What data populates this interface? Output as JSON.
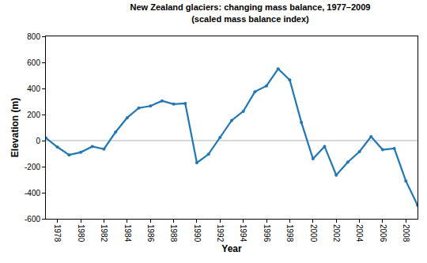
{
  "chart_data": {
    "type": "line",
    "title": "New Zealand glaciers: changing mass balance, 1977–2009",
    "subtitle": "(scaled mass balance index)",
    "x_label": "Year",
    "y_label": "Elevation (m)",
    "x": [
      1977,
      1978,
      1979,
      1980,
      1981,
      1982,
      1983,
      1984,
      1985,
      1986,
      1987,
      1988,
      1989,
      1990,
      1991,
      1992,
      1993,
      1994,
      1995,
      1996,
      1997,
      1998,
      1999,
      2000,
      2001,
      2002,
      2003,
      2004,
      2005,
      2006,
      2007,
      2008,
      2009
    ],
    "values": [
      20,
      -50,
      -110,
      -90,
      -45,
      -65,
      65,
      175,
      250,
      265,
      305,
      280,
      285,
      -170,
      -105,
      25,
      155,
      225,
      375,
      420,
      550,
      465,
      140,
      -140,
      -45,
      -265,
      -165,
      -85,
      30,
      -70,
      -60,
      -310,
      -495
    ],
    "color": "#2077b4",
    "marker": "circle",
    "xlim": [
      1977,
      2009
    ],
    "xticks": [
      1978,
      1980,
      1982,
      1984,
      1986,
      1988,
      1990,
      1992,
      1994,
      1996,
      1998,
      2000,
      2002,
      2004,
      2006,
      2008
    ],
    "ylim": [
      -600,
      800
    ],
    "yticks": [
      -600,
      -400,
      -200,
      0,
      200,
      400,
      600,
      800
    ],
    "grid": false
  }
}
